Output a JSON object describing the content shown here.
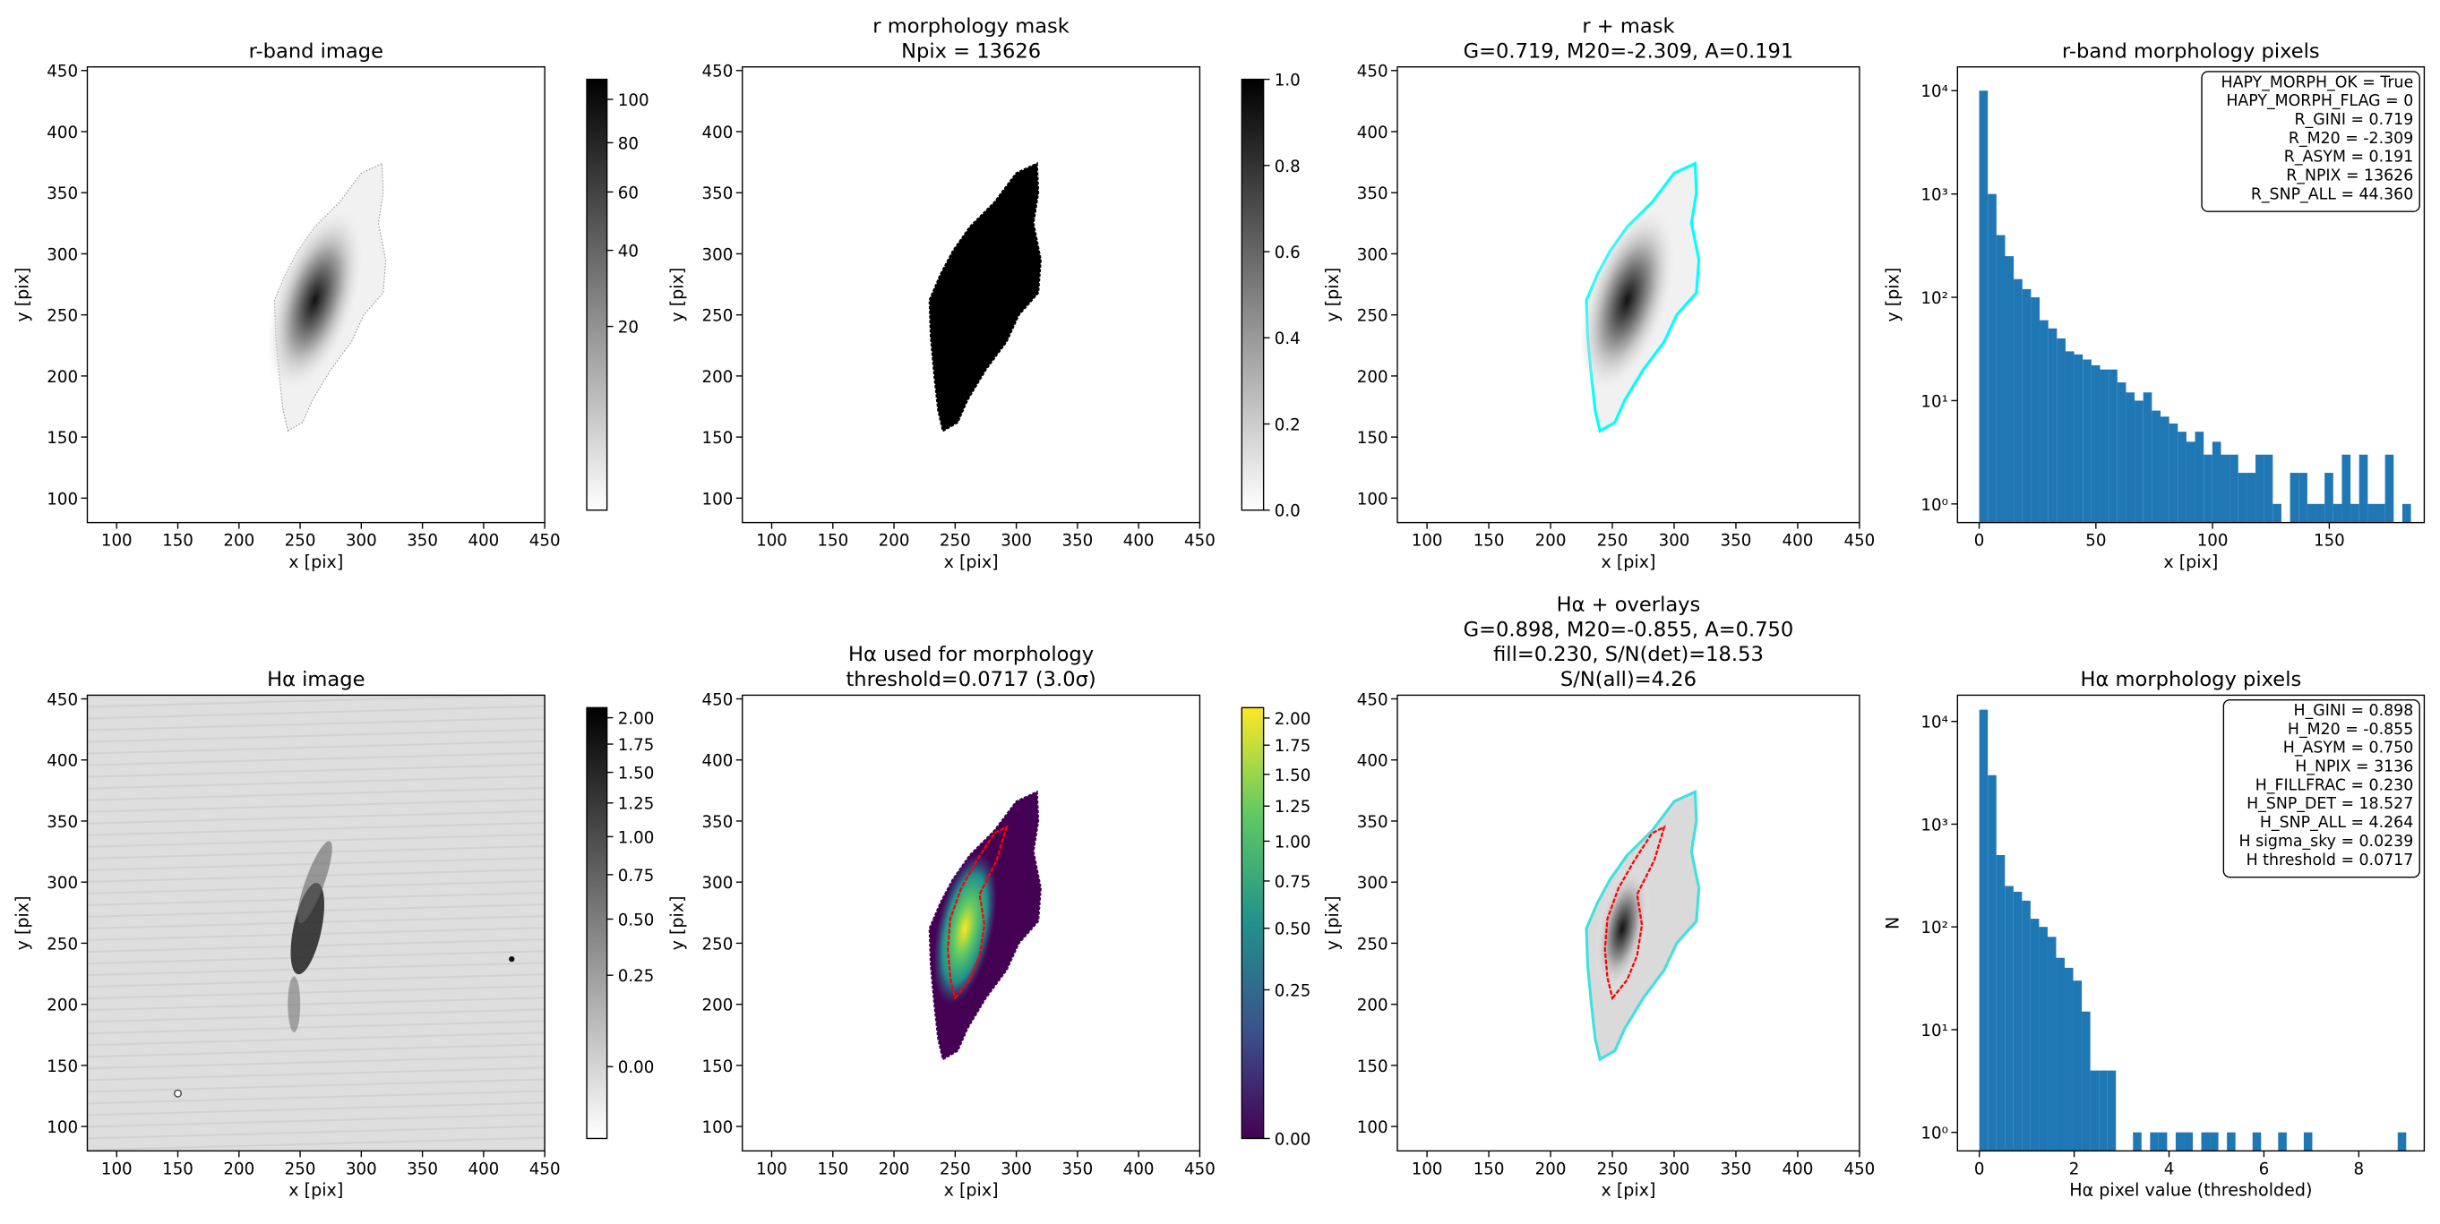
{
  "chart_data": [
    {
      "type": "image",
      "title": [
        "r-band image"
      ],
      "xlabel": "x [pix]",
      "ylabel": "y [pix]",
      "xlim": [
        76,
        450
      ],
      "ylim": [
        80,
        453
      ],
      "xticks": [
        100,
        150,
        200,
        250,
        300,
        350,
        400,
        450
      ],
      "yticks": [
        100,
        150,
        200,
        250,
        300,
        350,
        400,
        450
      ],
      "colorbar": {
        "cmap": "gray_r",
        "stretch": "sqrt",
        "clim": [
          0,
          110
        ],
        "ticks": [
          20,
          40,
          60,
          80,
          100
        ]
      }
    },
    {
      "type": "image",
      "title": [
        "r morphology mask",
        "Npix = 13626"
      ],
      "xlabel": "x [pix]",
      "ylabel": "y [pix]",
      "xlim": [
        76,
        450
      ],
      "ylim": [
        80,
        453
      ],
      "xticks": [
        100,
        150,
        200,
        250,
        300,
        350,
        400,
        450
      ],
      "yticks": [
        100,
        150,
        200,
        250,
        300,
        350,
        400,
        450
      ],
      "colorbar": {
        "cmap": "gray_r",
        "stretch": "linear",
        "clim": [
          0,
          1
        ],
        "ticks": [
          {
            "value": 0,
            "label": "0.0"
          },
          0.2,
          0.4,
          0.6,
          0.8,
          {
            "value": 1,
            "label": "1.0"
          }
        ]
      }
    },
    {
      "type": "image",
      "title": [
        "r + mask",
        "G=0.719, M20=-2.309, A=0.191"
      ],
      "xlabel": "x [pix]",
      "ylabel": "y [pix]",
      "xlim": [
        76,
        450
      ],
      "ylim": [
        80,
        453
      ],
      "xticks": [
        100,
        150,
        200,
        250,
        300,
        350,
        400,
        450
      ],
      "yticks": [
        100,
        150,
        200,
        250,
        300,
        350,
        400,
        450
      ]
    },
    {
      "type": "histogram",
      "title": [
        "r-band morphology pixels"
      ],
      "xlabel": "x [pix]",
      "ylabel": "y [pix]",
      "color": "#1f77b4",
      "yscale": "log",
      "xlim": [
        -9.3,
        190.7
      ],
      "ylim": [
        0.66,
        17000
      ],
      "xticks": [
        0,
        50,
        100,
        150
      ],
      "yticks": [
        {
          "value": 1,
          "label": "10⁰"
        },
        {
          "value": 10,
          "label": "10¹"
        },
        {
          "value": 100,
          "label": "10²"
        },
        {
          "value": 1000,
          "label": "10³"
        },
        {
          "value": 10000,
          "label": "10⁴"
        }
      ],
      "bins": [
        0,
        3.7,
        7.4,
        11.1,
        14.8,
        18.5,
        22.2,
        25.9,
        29.6,
        33.3,
        37,
        40.7,
        44.4,
        48.1,
        51.8,
        55.5,
        59.2,
        62.9,
        66.6,
        70.3,
        74,
        77.7,
        81.4,
        85.1,
        88.8,
        92.5,
        96.2,
        99.9,
        103.6,
        107.3,
        111,
        114.7,
        118.4,
        122.1,
        125.8,
        129.5,
        133.2,
        136.9,
        140.6,
        144.3,
        148,
        151.7,
        155.4,
        159.1,
        162.8,
        166.5,
        170.2,
        173.9,
        177.6,
        181.3,
        185
      ],
      "values": [
        10000,
        1000,
        400,
        250,
        150,
        120,
        100,
        60,
        50,
        40,
        30,
        28,
        25,
        22,
        20,
        20,
        15,
        12,
        10,
        12,
        8,
        7,
        6,
        5,
        4,
        5,
        3,
        4,
        3,
        3,
        2,
        2,
        3,
        3,
        1,
        0,
        2,
        2,
        1,
        1,
        2,
        1,
        3,
        1,
        3,
        1,
        1,
        3,
        0,
        1
      ],
      "textbox": [
        "HAPY_MORPH_OK = True",
        "HAPY_MORPH_FLAG = 0",
        "R_GINI = 0.719",
        "R_M20 = -2.309",
        "R_ASYM = 0.191",
        "R_NPIX = 13626",
        "R_SNP_ALL = 44.360"
      ]
    },
    {
      "type": "image",
      "title": [
        "Hα image"
      ],
      "xlabel": "x [pix]",
      "ylabel": "y [pix]",
      "xlim": [
        76,
        450
      ],
      "ylim": [
        80,
        453
      ],
      "xticks": [
        100,
        150,
        200,
        250,
        300,
        350,
        400,
        450
      ],
      "yticks": [
        100,
        150,
        200,
        250,
        300,
        350,
        400,
        450
      ],
      "colorbar": {
        "cmap": "gray_r",
        "stretch": "sqrt",
        "clim": [
          -0.06,
          2.1
        ],
        "ticks": [
          {
            "value": 0,
            "label": "0.00"
          },
          0.25,
          {
            "value": 0.5,
            "label": "0.50"
          },
          0.75,
          {
            "value": 1,
            "label": "1.00"
          },
          1.25,
          {
            "value": 1.5,
            "label": "1.50"
          },
          1.75,
          {
            "value": 2,
            "label": "2.00"
          }
        ]
      }
    },
    {
      "type": "image",
      "title": [
        "Hα used for morphology",
        "threshold=0.0717 (3.0σ)"
      ],
      "xlabel": "x [pix]",
      "ylabel": "y [pix]",
      "xlim": [
        76,
        450
      ],
      "ylim": [
        80,
        453
      ],
      "xticks": [
        100,
        150,
        200,
        250,
        300,
        350,
        400,
        450
      ],
      "yticks": [
        100,
        150,
        200,
        250,
        300,
        350,
        400,
        450
      ],
      "colorbar": {
        "cmap": "viridis",
        "stretch": "sqrt",
        "clim": [
          0,
          2.1
        ],
        "ticks": [
          {
            "value": 0,
            "label": "0.00"
          },
          0.25,
          {
            "value": 0.5,
            "label": "0.50"
          },
          0.75,
          {
            "value": 1,
            "label": "1.00"
          },
          1.25,
          {
            "value": 1.5,
            "label": "1.50"
          },
          1.75,
          {
            "value": 2,
            "label": "2.00"
          }
        ]
      }
    },
    {
      "type": "image",
      "title": [
        "Hα + overlays",
        "G=0.898, M20=-0.855, A=0.750",
        "fill=0.230, S/N(det)=18.53",
        "S/N(all)=4.26"
      ],
      "xlabel": "x [pix]",
      "ylabel": "y [pix]",
      "xlim": [
        76,
        450
      ],
      "ylim": [
        80,
        453
      ],
      "xticks": [
        100,
        150,
        200,
        250,
        300,
        350,
        400,
        450
      ],
      "yticks": [
        100,
        150,
        200,
        250,
        300,
        350,
        400,
        450
      ]
    },
    {
      "type": "histogram",
      "title": [
        "Hα morphology pixels"
      ],
      "xlabel": "Hα pixel value (thresholded)",
      "ylabel": "N",
      "color": "#1f77b4",
      "yscale": "log",
      "xlim": [
        -0.46,
        9.38
      ],
      "ylim": [
        0.66,
        18000
      ],
      "xticks": [
        0,
        2,
        4,
        6,
        8
      ],
      "yticks": [
        {
          "value": 1,
          "label": "10⁰"
        },
        {
          "value": 10,
          "label": "10¹"
        },
        {
          "value": 100,
          "label": "10²"
        },
        {
          "value": 1000,
          "label": "10³"
        },
        {
          "value": 10000,
          "label": "10⁴"
        }
      ],
      "bins": [
        0,
        0.18,
        0.36,
        0.54,
        0.72,
        0.9,
        1.08,
        1.26,
        1.44,
        1.62,
        1.8,
        1.98,
        2.16,
        2.34,
        2.52,
        2.7,
        2.88,
        3.06,
        3.24,
        3.42,
        3.6,
        3.78,
        3.96,
        4.14,
        4.32,
        4.5,
        4.68,
        4.86,
        5.04,
        5.22,
        5.4,
        5.58,
        5.76,
        5.94,
        6.12,
        6.3,
        6.48,
        6.66,
        6.84,
        7.02,
        7.2,
        7.38,
        7.56,
        7.74,
        7.92,
        8.1,
        8.28,
        8.46,
        8.64,
        8.82,
        9
      ],
      "values": [
        13000,
        3000,
        500,
        250,
        220,
        180,
        120,
        100,
        80,
        50,
        40,
        30,
        15,
        4,
        4,
        4,
        0,
        0,
        1,
        0,
        1,
        1,
        0,
        1,
        1,
        0,
        1,
        1,
        0,
        1,
        0,
        0,
        1,
        0,
        0,
        1,
        0,
        0,
        1,
        0,
        0,
        0,
        0,
        0,
        0,
        0,
        0,
        0,
        0,
        1
      ],
      "textbox": [
        "H_GINI = 0.898",
        "H_M20 = -0.855",
        "H_ASYM = 0.750",
        "H_NPIX = 3136",
        "H_FILLFRAC = 0.230",
        "H_SNP_DET = 18.527",
        "H_SNP_ALL = 4.264",
        "H sigma_sky = 0.0239",
        "H threshold = 0.0717"
      ]
    }
  ]
}
